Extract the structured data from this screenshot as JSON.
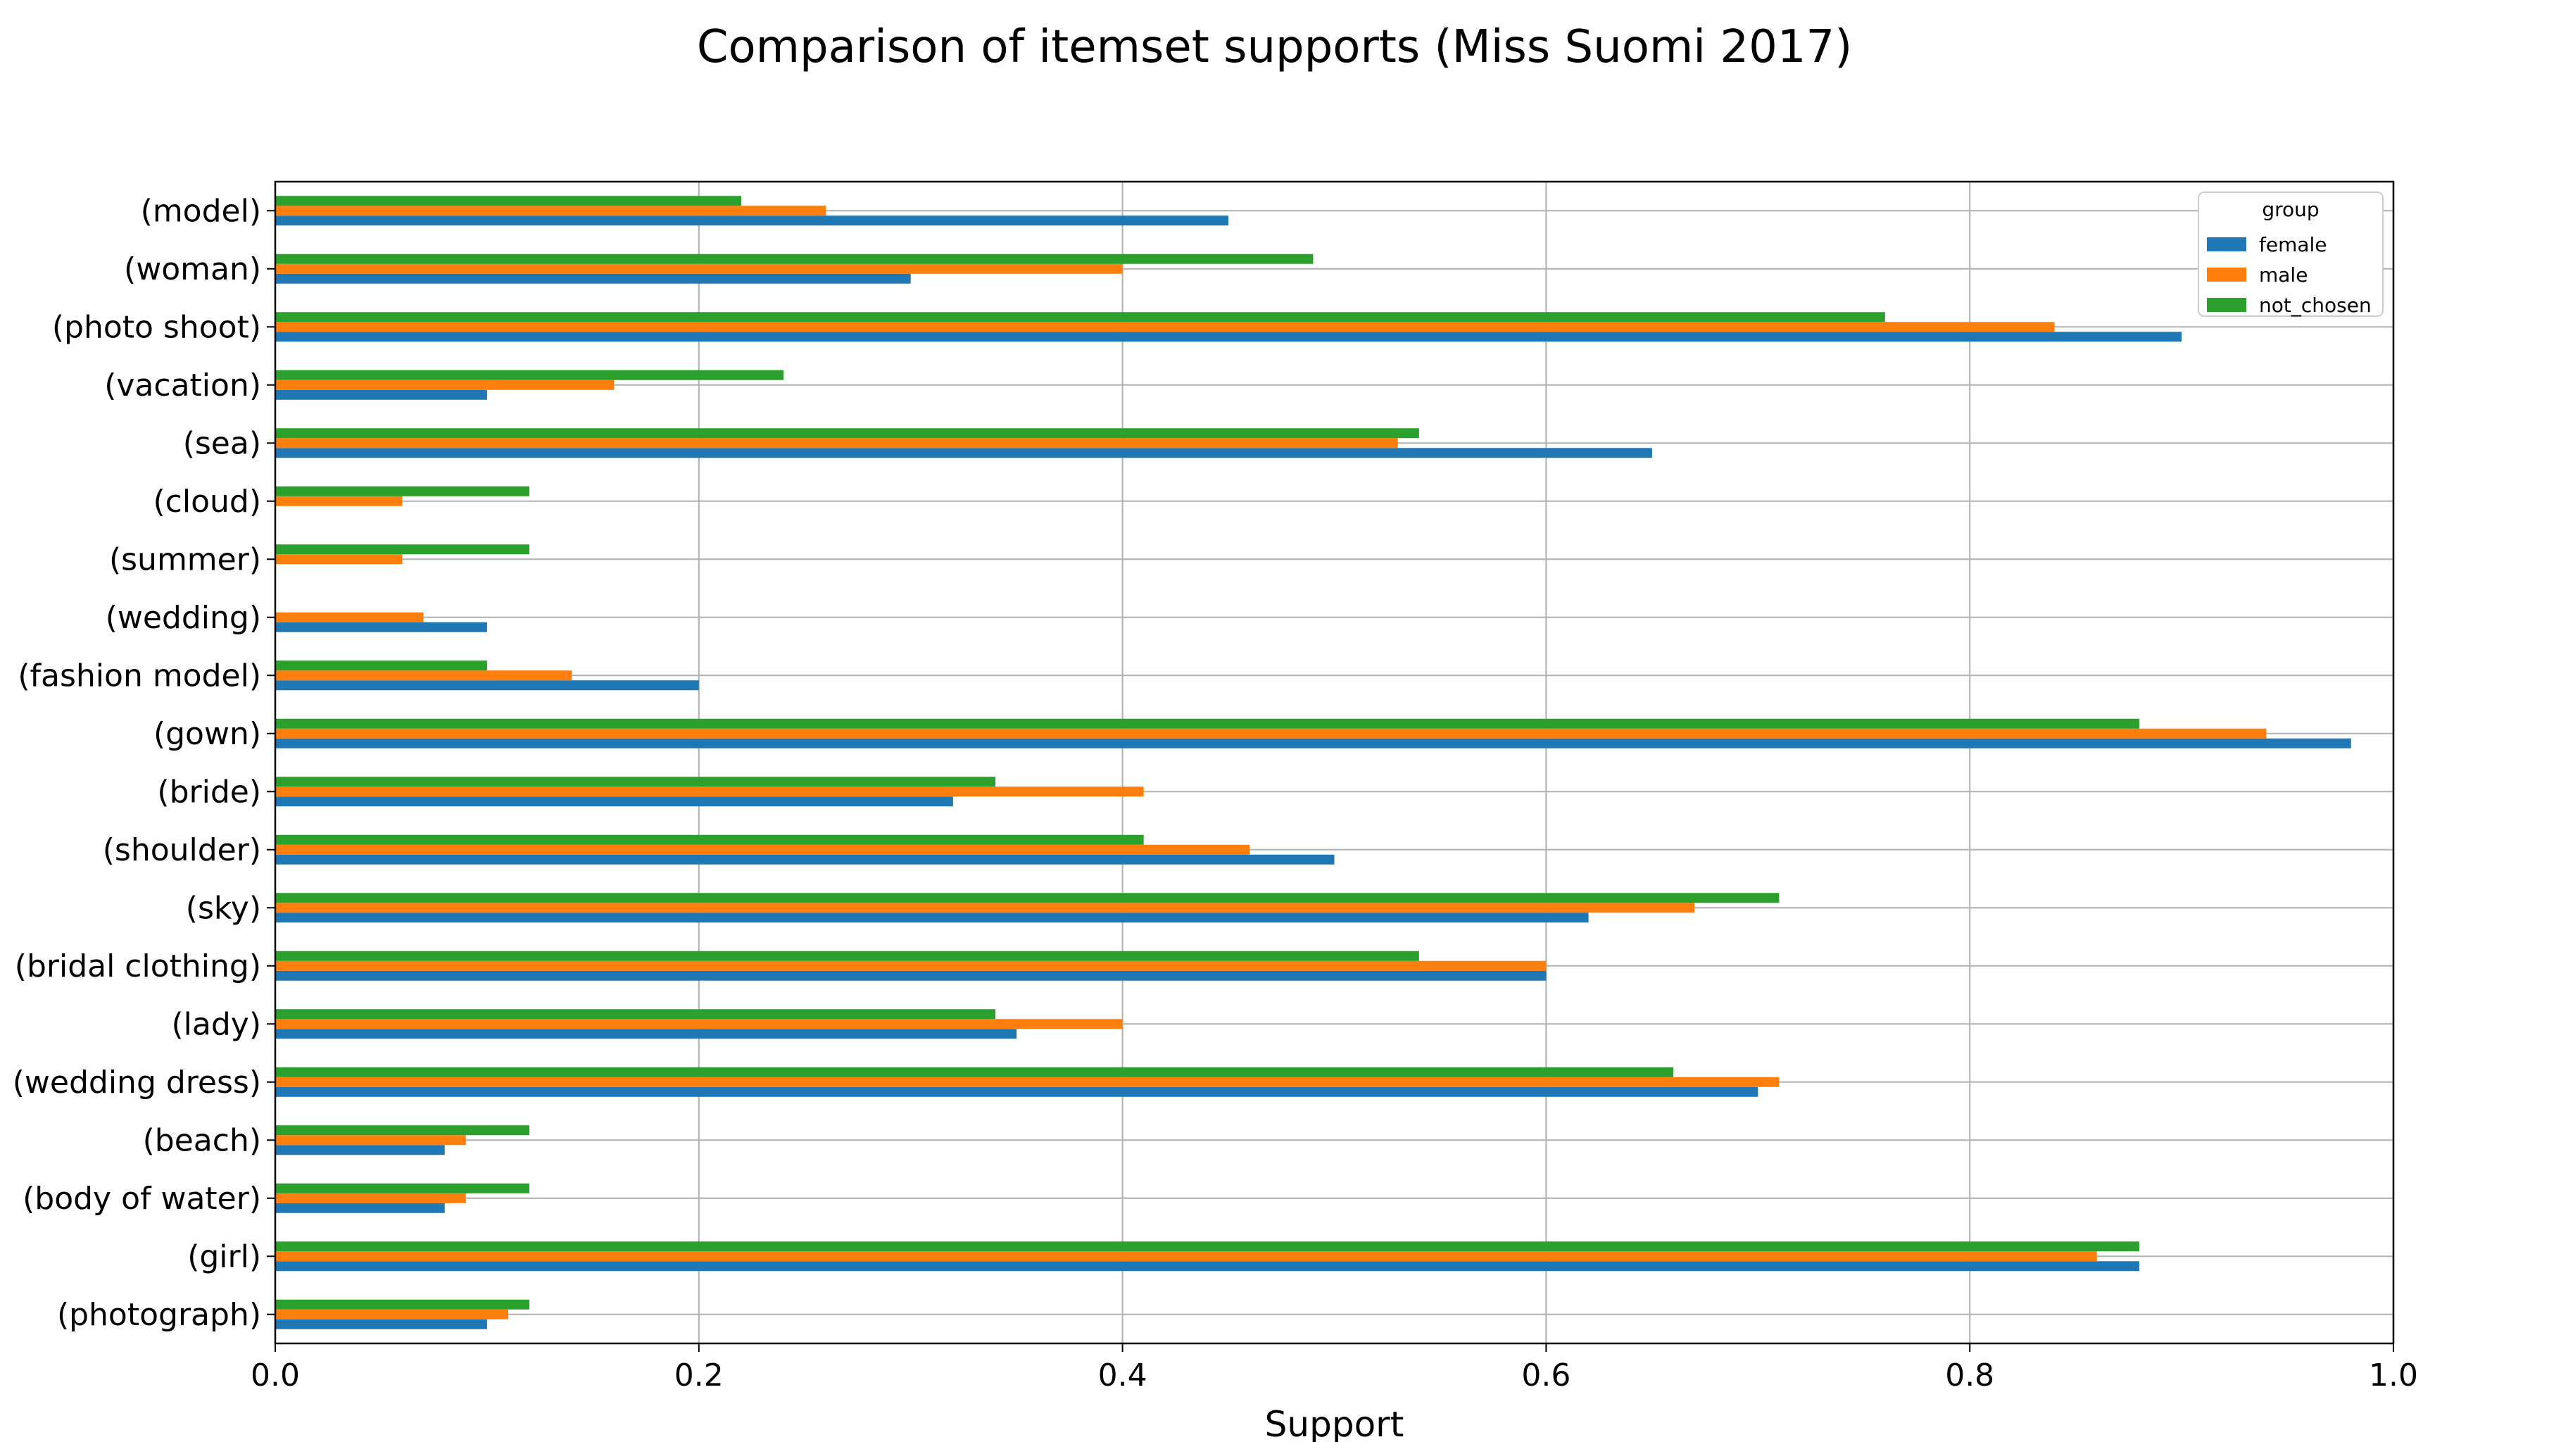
{
  "chart_data": {
    "type": "bar",
    "orientation": "horizontal",
    "title": "Comparison of itemset supports (Miss Suomi 2017)",
    "xlabel": "Support",
    "ylabel": "",
    "xlim": [
      0.0,
      1.0
    ],
    "xticks": [
      "0.0",
      "0.2",
      "0.4",
      "0.6",
      "0.8",
      "1.0"
    ],
    "grid": true,
    "legend": {
      "title": "group",
      "placement": "top-right"
    },
    "categories": [
      "(model)",
      "(woman)",
      "(photo shoot)",
      "(vacation)",
      "(sea)",
      "(cloud)",
      "(summer)",
      "(wedding)",
      "(fashion model)",
      "(gown)",
      "(bride)",
      "(shoulder)",
      "(sky)",
      "(bridal clothing)",
      "(lady)",
      "(wedding dress)",
      "(beach)",
      "(body of water)",
      "(girl)",
      "(photograph)"
    ],
    "series": [
      {
        "name": "female",
        "color": "#1f77b4",
        "values": [
          0.45,
          0.3,
          0.9,
          0.1,
          0.65,
          0.0,
          0.0,
          0.1,
          0.2,
          0.98,
          0.32,
          0.5,
          0.62,
          0.6,
          0.35,
          0.7,
          0.08,
          0.08,
          0.88,
          0.1
        ]
      },
      {
        "name": "male",
        "color": "#ff7f0e",
        "values": [
          0.26,
          0.4,
          0.84,
          0.16,
          0.53,
          0.06,
          0.06,
          0.07,
          0.14,
          0.94,
          0.41,
          0.46,
          0.67,
          0.6,
          0.4,
          0.71,
          0.09,
          0.09,
          0.86,
          0.11
        ]
      },
      {
        "name": "not_chosen",
        "color": "#2ca02c",
        "values": [
          0.22,
          0.49,
          0.76,
          0.24,
          0.54,
          0.12,
          0.12,
          0.0,
          0.1,
          0.88,
          0.34,
          0.41,
          0.71,
          0.54,
          0.34,
          0.66,
          0.12,
          0.12,
          0.88,
          0.12
        ]
      }
    ]
  }
}
